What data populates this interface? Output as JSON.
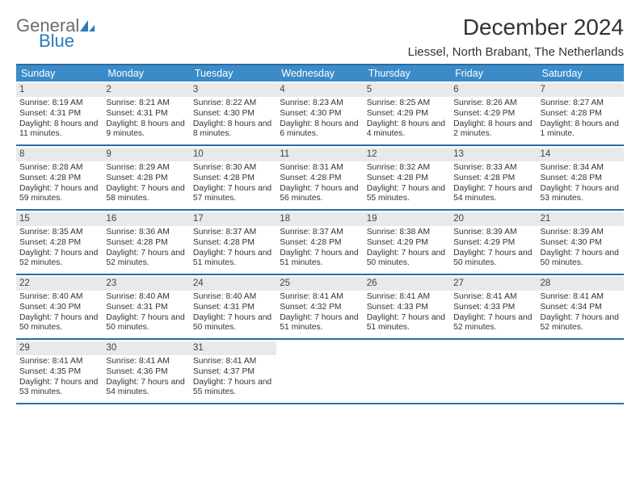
{
  "logo": {
    "line1": "General",
    "line2": "Blue"
  },
  "header": {
    "title": "December 2024",
    "subtitle": "Liessel, North Brabant, The Netherlands"
  },
  "colors": {
    "header_bar": "#3b8bc8",
    "border": "#2b6ca3",
    "daynum_bg": "#e9e9e9",
    "logo_gray": "#6b6b6b",
    "logo_blue": "#2b7bbd"
  },
  "daysOfWeek": [
    "Sunday",
    "Monday",
    "Tuesday",
    "Wednesday",
    "Thursday",
    "Friday",
    "Saturday"
  ],
  "weeks": [
    [
      {
        "n": "1",
        "sunrise": "Sunrise: 8:19 AM",
        "sunset": "Sunset: 4:31 PM",
        "daylight": "Daylight: 8 hours and 11 minutes."
      },
      {
        "n": "2",
        "sunrise": "Sunrise: 8:21 AM",
        "sunset": "Sunset: 4:31 PM",
        "daylight": "Daylight: 8 hours and 9 minutes."
      },
      {
        "n": "3",
        "sunrise": "Sunrise: 8:22 AM",
        "sunset": "Sunset: 4:30 PM",
        "daylight": "Daylight: 8 hours and 8 minutes."
      },
      {
        "n": "4",
        "sunrise": "Sunrise: 8:23 AM",
        "sunset": "Sunset: 4:30 PM",
        "daylight": "Daylight: 8 hours and 6 minutes."
      },
      {
        "n": "5",
        "sunrise": "Sunrise: 8:25 AM",
        "sunset": "Sunset: 4:29 PM",
        "daylight": "Daylight: 8 hours and 4 minutes."
      },
      {
        "n": "6",
        "sunrise": "Sunrise: 8:26 AM",
        "sunset": "Sunset: 4:29 PM",
        "daylight": "Daylight: 8 hours and 2 minutes."
      },
      {
        "n": "7",
        "sunrise": "Sunrise: 8:27 AM",
        "sunset": "Sunset: 4:28 PM",
        "daylight": "Daylight: 8 hours and 1 minute."
      }
    ],
    [
      {
        "n": "8",
        "sunrise": "Sunrise: 8:28 AM",
        "sunset": "Sunset: 4:28 PM",
        "daylight": "Daylight: 7 hours and 59 minutes."
      },
      {
        "n": "9",
        "sunrise": "Sunrise: 8:29 AM",
        "sunset": "Sunset: 4:28 PM",
        "daylight": "Daylight: 7 hours and 58 minutes."
      },
      {
        "n": "10",
        "sunrise": "Sunrise: 8:30 AM",
        "sunset": "Sunset: 4:28 PM",
        "daylight": "Daylight: 7 hours and 57 minutes."
      },
      {
        "n": "11",
        "sunrise": "Sunrise: 8:31 AM",
        "sunset": "Sunset: 4:28 PM",
        "daylight": "Daylight: 7 hours and 56 minutes."
      },
      {
        "n": "12",
        "sunrise": "Sunrise: 8:32 AM",
        "sunset": "Sunset: 4:28 PM",
        "daylight": "Daylight: 7 hours and 55 minutes."
      },
      {
        "n": "13",
        "sunrise": "Sunrise: 8:33 AM",
        "sunset": "Sunset: 4:28 PM",
        "daylight": "Daylight: 7 hours and 54 minutes."
      },
      {
        "n": "14",
        "sunrise": "Sunrise: 8:34 AM",
        "sunset": "Sunset: 4:28 PM",
        "daylight": "Daylight: 7 hours and 53 minutes."
      }
    ],
    [
      {
        "n": "15",
        "sunrise": "Sunrise: 8:35 AM",
        "sunset": "Sunset: 4:28 PM",
        "daylight": "Daylight: 7 hours and 52 minutes."
      },
      {
        "n": "16",
        "sunrise": "Sunrise: 8:36 AM",
        "sunset": "Sunset: 4:28 PM",
        "daylight": "Daylight: 7 hours and 52 minutes."
      },
      {
        "n": "17",
        "sunrise": "Sunrise: 8:37 AM",
        "sunset": "Sunset: 4:28 PM",
        "daylight": "Daylight: 7 hours and 51 minutes."
      },
      {
        "n": "18",
        "sunrise": "Sunrise: 8:37 AM",
        "sunset": "Sunset: 4:28 PM",
        "daylight": "Daylight: 7 hours and 51 minutes."
      },
      {
        "n": "19",
        "sunrise": "Sunrise: 8:38 AM",
        "sunset": "Sunset: 4:29 PM",
        "daylight": "Daylight: 7 hours and 50 minutes."
      },
      {
        "n": "20",
        "sunrise": "Sunrise: 8:39 AM",
        "sunset": "Sunset: 4:29 PM",
        "daylight": "Daylight: 7 hours and 50 minutes."
      },
      {
        "n": "21",
        "sunrise": "Sunrise: 8:39 AM",
        "sunset": "Sunset: 4:30 PM",
        "daylight": "Daylight: 7 hours and 50 minutes."
      }
    ],
    [
      {
        "n": "22",
        "sunrise": "Sunrise: 8:40 AM",
        "sunset": "Sunset: 4:30 PM",
        "daylight": "Daylight: 7 hours and 50 minutes."
      },
      {
        "n": "23",
        "sunrise": "Sunrise: 8:40 AM",
        "sunset": "Sunset: 4:31 PM",
        "daylight": "Daylight: 7 hours and 50 minutes."
      },
      {
        "n": "24",
        "sunrise": "Sunrise: 8:40 AM",
        "sunset": "Sunset: 4:31 PM",
        "daylight": "Daylight: 7 hours and 50 minutes."
      },
      {
        "n": "25",
        "sunrise": "Sunrise: 8:41 AM",
        "sunset": "Sunset: 4:32 PM",
        "daylight": "Daylight: 7 hours and 51 minutes."
      },
      {
        "n": "26",
        "sunrise": "Sunrise: 8:41 AM",
        "sunset": "Sunset: 4:33 PM",
        "daylight": "Daylight: 7 hours and 51 minutes."
      },
      {
        "n": "27",
        "sunrise": "Sunrise: 8:41 AM",
        "sunset": "Sunset: 4:33 PM",
        "daylight": "Daylight: 7 hours and 52 minutes."
      },
      {
        "n": "28",
        "sunrise": "Sunrise: 8:41 AM",
        "sunset": "Sunset: 4:34 PM",
        "daylight": "Daylight: 7 hours and 52 minutes."
      }
    ],
    [
      {
        "n": "29",
        "sunrise": "Sunrise: 8:41 AM",
        "sunset": "Sunset: 4:35 PM",
        "daylight": "Daylight: 7 hours and 53 minutes."
      },
      {
        "n": "30",
        "sunrise": "Sunrise: 8:41 AM",
        "sunset": "Sunset: 4:36 PM",
        "daylight": "Daylight: 7 hours and 54 minutes."
      },
      {
        "n": "31",
        "sunrise": "Sunrise: 8:41 AM",
        "sunset": "Sunset: 4:37 PM",
        "daylight": "Daylight: 7 hours and 55 minutes."
      },
      null,
      null,
      null,
      null
    ]
  ]
}
